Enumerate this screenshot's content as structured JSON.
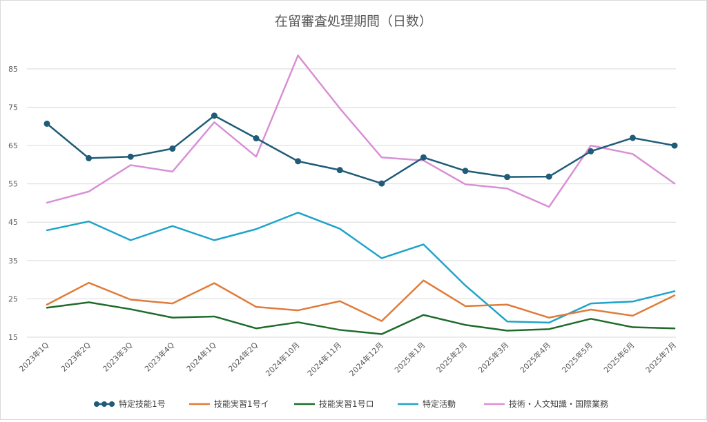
{
  "chart_data": {
    "type": "line",
    "title": "在留審査処理期間（日数）",
    "categories": [
      "2023年1Q",
      "2023年2Q",
      "2023年3Q",
      "2023年4Q",
      "2024年1Q",
      "2024年2Q",
      "2024年10月",
      "2024年11月",
      "2024年12月",
      "2025年1月",
      "2025年2月",
      "2025年3月",
      "2025年4月",
      "2025年5月",
      "2025年6月",
      "2025年7月"
    ],
    "yticks": [
      15,
      25,
      35,
      45,
      55,
      65,
      75,
      85
    ],
    "ylim": [
      15,
      92
    ],
    "grid": true,
    "legend_position": "bottom",
    "series": [
      {
        "name": "特定技能1号",
        "color": "#1f5c78",
        "markers": true,
        "values": [
          70.7,
          61.7,
          62.1,
          64.2,
          72.8,
          66.9,
          60.9,
          58.6,
          55.1,
          61.9,
          58.4,
          56.8,
          56.9,
          63.5,
          67.0,
          65.0
        ]
      },
      {
        "name": "技能実習1号イ",
        "color": "#e07b39",
        "markers": false,
        "values": [
          23.5,
          29.2,
          24.8,
          23.8,
          29.1,
          22.9,
          22.0,
          24.4,
          19.2,
          29.8,
          23.1,
          23.5,
          20.1,
          22.2,
          20.6,
          25.9
        ]
      },
      {
        "name": "技能実習1号ロ",
        "color": "#1e6b2a",
        "markers": false,
        "values": [
          22.7,
          24.1,
          22.3,
          20.1,
          20.4,
          17.3,
          18.9,
          16.9,
          15.8,
          20.8,
          18.2,
          16.7,
          17.1,
          19.8,
          17.6,
          17.3
        ]
      },
      {
        "name": "特定活動",
        "color": "#1ea3c9",
        "markers": false,
        "values": [
          42.9,
          45.2,
          40.3,
          44.0,
          40.3,
          43.2,
          47.5,
          43.3,
          35.6,
          39.2,
          28.5,
          19.1,
          18.8,
          23.8,
          24.3,
          27.0
        ]
      },
      {
        "name": "技術・人文知識・国際業務",
        "color": "#d98fd6",
        "markers": false,
        "values": [
          50.1,
          53.0,
          59.9,
          58.2,
          71.1,
          62.1,
          88.5,
          74.7,
          61.9,
          61.1,
          54.9,
          53.8,
          49.0,
          65.0,
          62.8,
          55.1
        ]
      }
    ]
  }
}
